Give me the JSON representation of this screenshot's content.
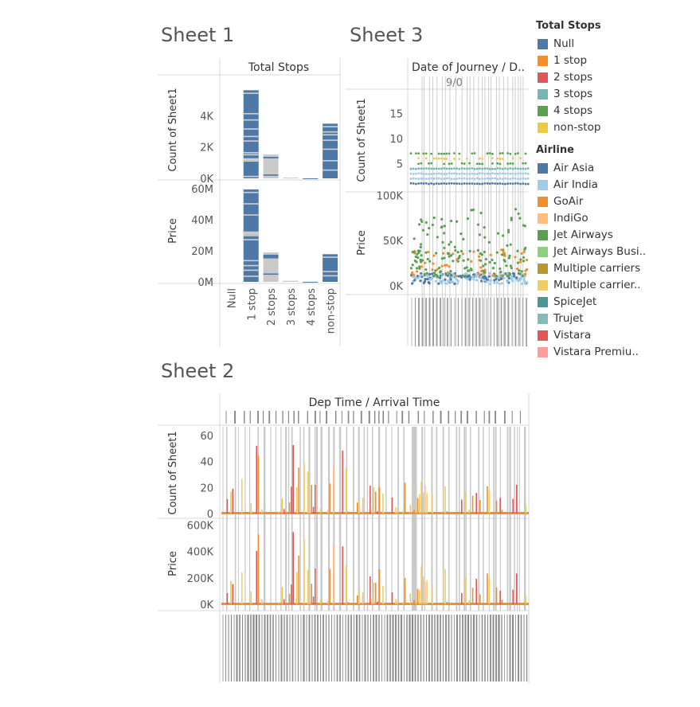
{
  "sheets": {
    "sheet1_title": "Sheet 1",
    "sheet2_title": "Sheet 2",
    "sheet3_title": "Sheet 3"
  },
  "legend": {
    "total_stops_title": "Total Stops",
    "total_stops": [
      {
        "label": "Null",
        "color": "#4e79a7"
      },
      {
        "label": "1 stop",
        "color": "#f28e2b"
      },
      {
        "label": "2 stops",
        "color": "#e15759"
      },
      {
        "label": "3 stops",
        "color": "#76b7b2"
      },
      {
        "label": "4 stops",
        "color": "#59a14f"
      },
      {
        "label": "non-stop",
        "color": "#edc948"
      }
    ],
    "airline_title": "Airline",
    "airline": [
      {
        "label": "Air Asia",
        "color": "#4e79a7"
      },
      {
        "label": "Air India",
        "color": "#a0cbe8"
      },
      {
        "label": "GoAir",
        "color": "#f28e2b"
      },
      {
        "label": "IndiGo",
        "color": "#ffbe7d"
      },
      {
        "label": "Jet Airways",
        "color": "#59a14f"
      },
      {
        "label": "Jet Airways Busi..",
        "color": "#8cd17d"
      },
      {
        "label": "Multiple carriers",
        "color": "#b6992d"
      },
      {
        "label": "Multiple carrier..",
        "color": "#f1ce63"
      },
      {
        "label": "SpiceJet",
        "color": "#499894"
      },
      {
        "label": "Trujet",
        "color": "#86bcb6"
      },
      {
        "label": "Vistara",
        "color": "#e15759"
      },
      {
        "label": "Vistara Premiu..",
        "color": "#ff9d9a"
      }
    ]
  },
  "chart_data": [
    {
      "id": "sheet1",
      "type": "bar",
      "header": "Total Stops",
      "categories": [
        "Null",
        "1 stop",
        "2 stops",
        "3 stops",
        "4 stops",
        "non-stop"
      ],
      "series": [
        {
          "values": [
            0,
            5625,
            1520,
            45,
            1,
            3490
          ]
        },
        {
          "values": [
            0,
            59500000,
            19000000,
            700000,
            17000,
            17800000
          ]
        }
      ],
      "ylabels": [
        "Count of Sheet1",
        "Price"
      ],
      "count_ticks": [
        "0K",
        "2K",
        "4K"
      ],
      "price_ticks": [
        "0M",
        "20M",
        "40M",
        "60M"
      ],
      "count_ylim": [
        0,
        6100
      ],
      "price_ylim": [
        0,
        62000000
      ]
    },
    {
      "id": "sheet3",
      "type": "scatter",
      "header": "Date of Journey  /  D..",
      "header_top_ticks": "9/0",
      "ylabels": [
        "Count of Sheet1",
        "Price"
      ],
      "count_ticks": [
        "5",
        "10",
        "15"
      ],
      "count_ylim": [
        0,
        20
      ],
      "price_ticks": [
        "0K",
        "50K",
        "100K"
      ],
      "price_ylim": [
        0,
        110000
      ]
    },
    {
      "id": "sheet2",
      "type": "bar",
      "header": "Dep Time  /  Arrival Time",
      "ylabels": [
        "Count of Sheet1",
        "Price"
      ],
      "count_ticks": [
        "0",
        "20",
        "40",
        "60"
      ],
      "count_ylim": [
        0,
        68
      ],
      "price_ticks": [
        "0K",
        "200K",
        "400K",
        "600K"
      ],
      "price_ylim": [
        0,
        670000
      ]
    }
  ]
}
